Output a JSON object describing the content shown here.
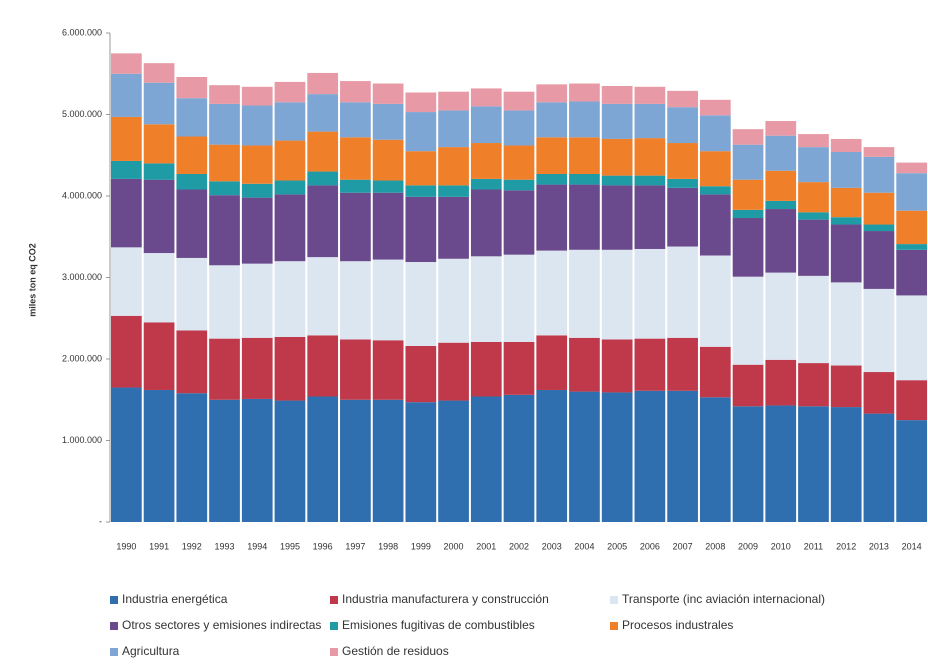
{
  "chart_data": {
    "type": "stacked_bar",
    "y_label": "miles ton eq CO2",
    "categories": [
      "1990",
      "1991",
      "1992",
      "1993",
      "1994",
      "1995",
      "1996",
      "1997",
      "1998",
      "1999",
      "2000",
      "2001",
      "2002",
      "2003",
      "2004",
      "2005",
      "2006",
      "2007",
      "2008",
      "2009",
      "2010",
      "2011",
      "2012",
      "2013",
      "2014"
    ],
    "ylim": [
      0,
      6000000
    ],
    "yticks": [
      {
        "value": 0,
        "label": "-"
      },
      {
        "value": 1000000,
        "label": "1.000.000"
      },
      {
        "value": 2000000,
        "label": "2.000.000"
      },
      {
        "value": 3000000,
        "label": "3.000.000"
      },
      {
        "value": 4000000,
        "label": "4.000.000"
      },
      {
        "value": 5000000,
        "label": "5.000.000"
      },
      {
        "value": 6000000,
        "label": "6.000.000"
      }
    ],
    "series": [
      {
        "name": "Industria energética",
        "color": "#2f6fb0",
        "values": [
          1650000,
          1620000,
          1580000,
          1500000,
          1510000,
          1490000,
          1540000,
          1500000,
          1500000,
          1470000,
          1490000,
          1540000,
          1560000,
          1620000,
          1600000,
          1590000,
          1610000,
          1610000,
          1530000,
          1420000,
          1430000,
          1420000,
          1410000,
          1330000,
          1250000
        ]
      },
      {
        "name": "Industria manufacturera y construcción",
        "color": "#c0394a",
        "values": [
          880000,
          830000,
          770000,
          750000,
          750000,
          780000,
          750000,
          740000,
          730000,
          690000,
          710000,
          670000,
          650000,
          670000,
          660000,
          650000,
          640000,
          650000,
          620000,
          510000,
          560000,
          530000,
          510000,
          510000,
          490000
        ]
      },
      {
        "name": "Transporte (inc aviación internacional)",
        "color": "#dce6f1",
        "values": [
          840000,
          850000,
          890000,
          900000,
          910000,
          930000,
          960000,
          960000,
          990000,
          1030000,
          1030000,
          1050000,
          1070000,
          1040000,
          1080000,
          1100000,
          1100000,
          1120000,
          1120000,
          1080000,
          1070000,
          1070000,
          1020000,
          1020000,
          1040000
        ]
      },
      {
        "name": "Otros sectores y emisiones indirectas",
        "color": "#6a4a8c",
        "values": [
          840000,
          900000,
          840000,
          860000,
          810000,
          820000,
          880000,
          840000,
          820000,
          800000,
          760000,
          820000,
          790000,
          810000,
          800000,
          790000,
          780000,
          720000,
          750000,
          720000,
          780000,
          690000,
          710000,
          710000,
          560000
        ]
      },
      {
        "name": "Emisiones fugitivas de combustibles",
        "color": "#1e9ba5",
        "values": [
          220000,
          200000,
          190000,
          170000,
          170000,
          170000,
          170000,
          160000,
          150000,
          140000,
          140000,
          130000,
          130000,
          130000,
          130000,
          120000,
          120000,
          110000,
          100000,
          100000,
          100000,
          90000,
          90000,
          80000,
          70000
        ]
      },
      {
        "name": "Procesos industrales",
        "color": "#f07f2a",
        "values": [
          540000,
          480000,
          460000,
          450000,
          470000,
          490000,
          490000,
          520000,
          500000,
          420000,
          470000,
          440000,
          420000,
          450000,
          450000,
          450000,
          460000,
          440000,
          430000,
          370000,
          370000,
          370000,
          360000,
          390000,
          410000
        ]
      },
      {
        "name": "Agricultura",
        "color": "#7ea6d4",
        "values": [
          530000,
          510000,
          470000,
          500000,
          490000,
          470000,
          460000,
          430000,
          440000,
          480000,
          450000,
          450000,
          430000,
          430000,
          440000,
          430000,
          420000,
          440000,
          440000,
          430000,
          430000,
          430000,
          440000,
          440000,
          460000
        ]
      },
      {
        "name": "Gestión de residuos",
        "color": "#e79aa6",
        "values": [
          250000,
          240000,
          260000,
          230000,
          230000,
          250000,
          260000,
          260000,
          250000,
          240000,
          230000,
          220000,
          230000,
          220000,
          220000,
          220000,
          210000,
          200000,
          190000,
          190000,
          180000,
          160000,
          160000,
          120000,
          130000
        ]
      }
    ]
  }
}
